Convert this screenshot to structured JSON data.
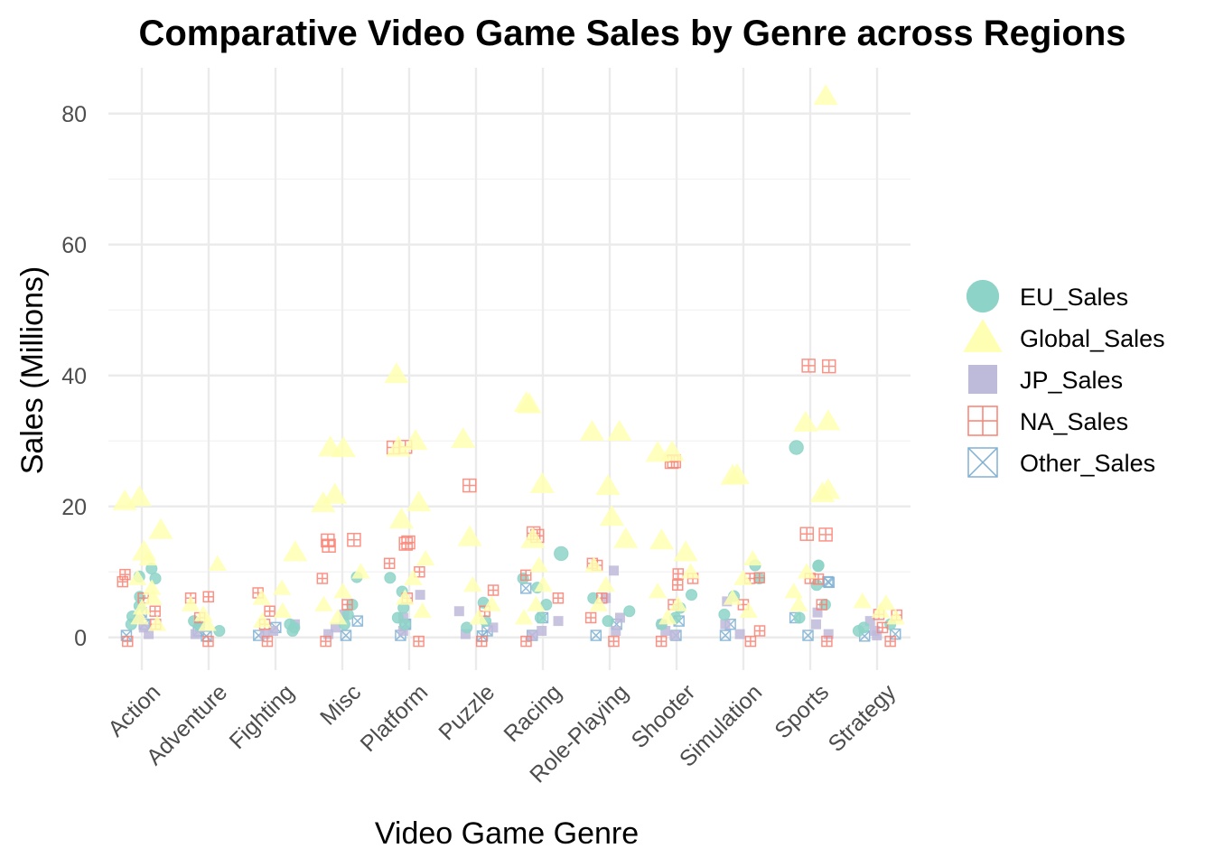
{
  "chart_data": {
    "type": "scatter",
    "title": "Comparative Video Game Sales by Genre across Regions",
    "xlabel": "Video Game Genre",
    "ylabel": "Sales (Millions)",
    "categories": [
      "Action",
      "Adventure",
      "Fighting",
      "Misc",
      "Platform",
      "Puzzle",
      "Racing",
      "Role-Playing",
      "Shooter",
      "Simulation",
      "Sports",
      "Strategy"
    ],
    "ylim": [
      -5,
      87
    ],
    "yticks": [
      0,
      20,
      40,
      60,
      80
    ],
    "grid": true,
    "legend_position": "right",
    "series": [
      {
        "name": "EU_Sales",
        "color": "#8DD3C7",
        "marker": "circle",
        "points": [
          [
            0,
            9.3
          ],
          [
            0,
            9.0
          ],
          [
            0,
            6.2
          ],
          [
            0,
            4.8
          ],
          [
            0,
            3.2
          ],
          [
            0,
            2.0
          ],
          [
            0,
            10.5
          ],
          [
            1,
            2.5
          ],
          [
            1,
            1.8
          ],
          [
            1,
            1.0
          ],
          [
            2,
            2.0
          ],
          [
            2,
            1.5
          ],
          [
            2,
            1.0
          ],
          [
            3,
            9.2
          ],
          [
            3,
            5.0
          ],
          [
            3,
            3.5
          ],
          [
            3,
            2.0
          ],
          [
            4,
            9.1
          ],
          [
            4,
            7.0
          ],
          [
            4,
            4.5
          ],
          [
            4,
            3.0
          ],
          [
            4,
            2.0
          ],
          [
            5,
            5.3
          ],
          [
            5,
            2.5
          ],
          [
            5,
            1.5
          ],
          [
            6,
            12.8
          ],
          [
            6,
            9.0
          ],
          [
            6,
            7.6
          ],
          [
            6,
            5.0
          ],
          [
            6,
            3.0
          ],
          [
            7,
            6.0
          ],
          [
            7,
            4.0
          ],
          [
            7,
            2.5
          ],
          [
            8,
            6.5
          ],
          [
            8,
            4.5
          ],
          [
            8,
            3.0
          ],
          [
            8,
            2.0
          ],
          [
            9,
            11.0
          ],
          [
            9,
            9.0
          ],
          [
            9,
            6.3
          ],
          [
            9,
            3.5
          ],
          [
            10,
            29.0
          ],
          [
            10,
            11.0
          ],
          [
            10,
            10.9
          ],
          [
            10,
            8.0
          ],
          [
            10,
            5.0
          ],
          [
            10,
            3.0
          ],
          [
            11,
            2.0
          ],
          [
            11,
            1.5
          ],
          [
            11,
            1.0
          ]
        ]
      },
      {
        "name": "Global_Sales",
        "color": "#FFFFB3",
        "marker": "triangle",
        "points": [
          [
            0,
            21.4
          ],
          [
            0,
            20.8
          ],
          [
            0,
            16.4
          ],
          [
            0,
            13.1
          ],
          [
            0,
            12.0
          ],
          [
            0,
            9.0
          ],
          [
            0,
            7.5
          ],
          [
            0,
            6.0
          ],
          [
            0,
            4.5
          ],
          [
            0,
            3.0
          ],
          [
            0,
            2.0
          ],
          [
            1,
            11.2
          ],
          [
            1,
            5.0
          ],
          [
            1,
            3.5
          ],
          [
            1,
            2.0
          ],
          [
            2,
            13.0
          ],
          [
            2,
            7.5
          ],
          [
            2,
            6.0
          ],
          [
            2,
            4.0
          ],
          [
            2,
            2.5
          ],
          [
            3,
            29.0
          ],
          [
            3,
            28.9
          ],
          [
            3,
            21.8
          ],
          [
            3,
            20.5
          ],
          [
            3,
            10.0
          ],
          [
            3,
            7.0
          ],
          [
            3,
            5.0
          ],
          [
            3,
            3.0
          ],
          [
            4,
            40.2
          ],
          [
            4,
            30.0
          ],
          [
            4,
            29.0
          ],
          [
            4,
            20.6
          ],
          [
            4,
            18.0
          ],
          [
            4,
            12.0
          ],
          [
            4,
            9.0
          ],
          [
            4,
            6.0
          ],
          [
            4,
            4.0
          ],
          [
            5,
            30.3
          ],
          [
            5,
            15.3
          ],
          [
            5,
            8.0
          ],
          [
            5,
            5.0
          ],
          [
            5,
            3.0
          ],
          [
            6,
            35.8
          ],
          [
            6,
            35.6
          ],
          [
            6,
            23.4
          ],
          [
            6,
            15.0
          ],
          [
            6,
            11.0
          ],
          [
            6,
            8.0
          ],
          [
            6,
            5.0
          ],
          [
            6,
            3.0
          ],
          [
            7,
            31.4
          ],
          [
            7,
            31.4
          ],
          [
            7,
            23.1
          ],
          [
            7,
            18.4
          ],
          [
            7,
            15.0
          ],
          [
            7,
            11.0
          ],
          [
            7,
            8.0
          ],
          [
            7,
            5.0
          ],
          [
            8,
            28.3
          ],
          [
            8,
            28.2
          ],
          [
            8,
            14.8
          ],
          [
            8,
            13.0
          ],
          [
            8,
            10.0
          ],
          [
            8,
            7.0
          ],
          [
            8,
            5.0
          ],
          [
            8,
            3.0
          ],
          [
            9,
            24.8
          ],
          [
            9,
            24.7
          ],
          [
            9,
            12.0
          ],
          [
            9,
            9.0
          ],
          [
            9,
            6.0
          ],
          [
            9,
            4.0
          ],
          [
            10,
            82.7
          ],
          [
            10,
            33.0
          ],
          [
            10,
            32.8
          ],
          [
            10,
            22.5
          ],
          [
            10,
            22.0
          ],
          [
            10,
            10.0
          ],
          [
            10,
            7.0
          ],
          [
            10,
            5.0
          ],
          [
            11,
            5.5
          ],
          [
            11,
            5.2
          ],
          [
            11,
            4.0
          ],
          [
            11,
            3.0
          ]
        ]
      },
      {
        "name": "JP_Sales",
        "color": "#BEBADA",
        "marker": "square",
        "points": [
          [
            0,
            3.0
          ],
          [
            0,
            1.5
          ],
          [
            0,
            0.5
          ],
          [
            1,
            1.5
          ],
          [
            1,
            0.5
          ],
          [
            2,
            2.0
          ],
          [
            2,
            1.0
          ],
          [
            2,
            0.5
          ],
          [
            3,
            3.5
          ],
          [
            3,
            1.5
          ],
          [
            3,
            0.5
          ],
          [
            4,
            6.5
          ],
          [
            4,
            3.0
          ],
          [
            4,
            1.0
          ],
          [
            5,
            4.0
          ],
          [
            5,
            1.5
          ],
          [
            5,
            0.5
          ],
          [
            6,
            2.5
          ],
          [
            6,
            1.0
          ],
          [
            6,
            0.3
          ],
          [
            7,
            10.2
          ],
          [
            7,
            6.0
          ],
          [
            7,
            3.0
          ],
          [
            7,
            1.0
          ],
          [
            8,
            2.0
          ],
          [
            8,
            1.0
          ],
          [
            8,
            0.3
          ],
          [
            9,
            5.5
          ],
          [
            9,
            2.0
          ],
          [
            9,
            0.5
          ],
          [
            10,
            3.8
          ],
          [
            10,
            2.0
          ],
          [
            10,
            0.5
          ],
          [
            11,
            2.5
          ],
          [
            11,
            1.0
          ],
          [
            11,
            0.3
          ]
        ]
      },
      {
        "name": "NA_Sales",
        "color": "#FB8072",
        "marker": "square-cross",
        "points": [
          [
            0,
            9.6
          ],
          [
            0,
            8.5
          ],
          [
            0,
            6.0
          ],
          [
            0,
            4.0
          ],
          [
            0,
            2.0
          ],
          [
            0,
            -0.6
          ],
          [
            1,
            6.2
          ],
          [
            1,
            6.0
          ],
          [
            1,
            3.0
          ],
          [
            1,
            -0.6
          ],
          [
            2,
            6.8
          ],
          [
            2,
            4.0
          ],
          [
            2,
            2.0
          ],
          [
            2,
            -0.6
          ],
          [
            3,
            14.9
          ],
          [
            3,
            14.8
          ],
          [
            3,
            14.0
          ],
          [
            3,
            9.0
          ],
          [
            3,
            5.0
          ],
          [
            3,
            -0.6
          ],
          [
            4,
            29.1
          ],
          [
            4,
            29.0
          ],
          [
            4,
            14.5
          ],
          [
            4,
            14.3
          ],
          [
            4,
            11.3
          ],
          [
            4,
            10.0
          ],
          [
            4,
            6.0
          ],
          [
            4,
            -0.6
          ],
          [
            5,
            23.2
          ],
          [
            5,
            7.2
          ],
          [
            5,
            4.0
          ],
          [
            5,
            -0.6
          ],
          [
            6,
            15.9
          ],
          [
            6,
            15.5
          ],
          [
            6,
            9.5
          ],
          [
            6,
            6.0
          ],
          [
            6,
            -0.6
          ],
          [
            7,
            11.3
          ],
          [
            7,
            11.0
          ],
          [
            7,
            6.0
          ],
          [
            7,
            3.0
          ],
          [
            7,
            -0.6
          ],
          [
            8,
            26.9
          ],
          [
            8,
            26.8
          ],
          [
            8,
            9.7
          ],
          [
            8,
            9.0
          ],
          [
            8,
            8.0
          ],
          [
            8,
            5.0
          ],
          [
            8,
            -0.6
          ],
          [
            9,
            9.1
          ],
          [
            9,
            9.0
          ],
          [
            9,
            5.0
          ],
          [
            9,
            1.0
          ],
          [
            9,
            -0.6
          ],
          [
            10,
            41.5
          ],
          [
            10,
            41.4
          ],
          [
            10,
            15.7
          ],
          [
            10,
            15.8
          ],
          [
            10,
            9.0
          ],
          [
            10,
            8.9
          ],
          [
            10,
            5.0
          ],
          [
            10,
            -0.6
          ],
          [
            11,
            3.5
          ],
          [
            11,
            3.4
          ],
          [
            11,
            1.5
          ],
          [
            11,
            -0.6
          ]
        ]
      },
      {
        "name": "Other_Sales",
        "color": "#80B1D3",
        "marker": "square-x",
        "points": [
          [
            0,
            3.8
          ],
          [
            0,
            2.0
          ],
          [
            0,
            0.3
          ],
          [
            1,
            1.0
          ],
          [
            1,
            0.2
          ],
          [
            2,
            1.5
          ],
          [
            2,
            0.3
          ],
          [
            3,
            2.5
          ],
          [
            3,
            0.3
          ],
          [
            4,
            2.0
          ],
          [
            4,
            0.3
          ],
          [
            5,
            1.0
          ],
          [
            5,
            0.2
          ],
          [
            6,
            7.5
          ],
          [
            6,
            3.0
          ],
          [
            6,
            0.3
          ],
          [
            7,
            2.0
          ],
          [
            7,
            0.3
          ],
          [
            8,
            2.5
          ],
          [
            8,
            0.3
          ],
          [
            9,
            2.0
          ],
          [
            9,
            0.3
          ],
          [
            10,
            8.5
          ],
          [
            10,
            8.4
          ],
          [
            10,
            3.0
          ],
          [
            10,
            0.3
          ],
          [
            11,
            0.5
          ],
          [
            11,
            0.2
          ]
        ]
      }
    ]
  }
}
